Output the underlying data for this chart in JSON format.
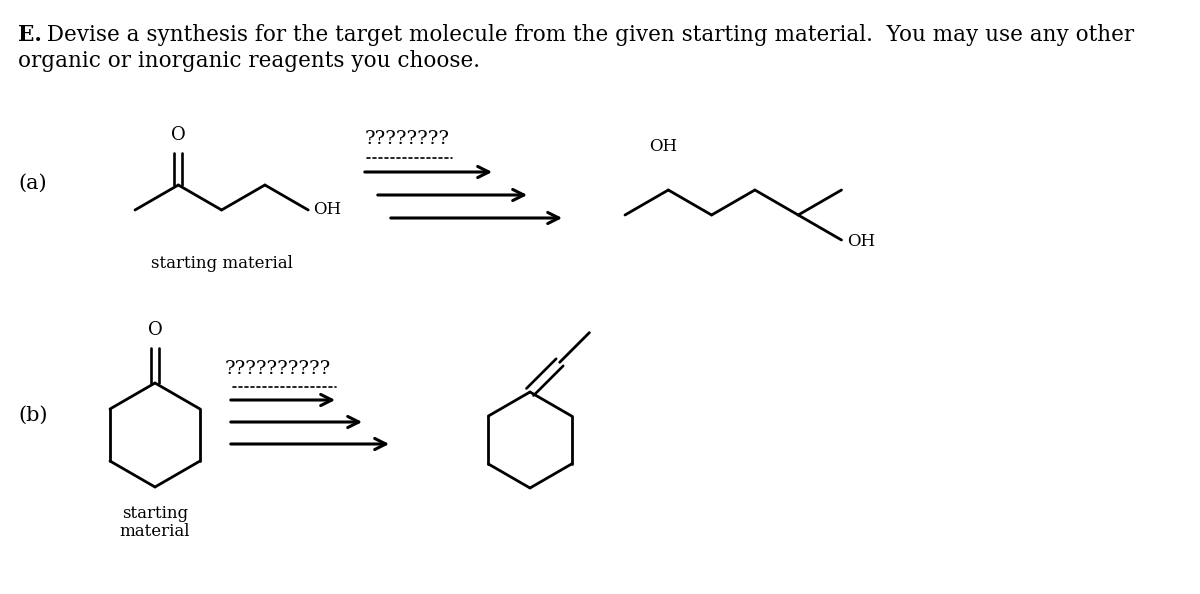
{
  "title_bold": "E.",
  "title_rest": " Devise a synthesis for the target molecule from the given starting material.  You may use any other",
  "title_line2": "organic or inorganic reagents you choose.",
  "label_a": "(a)",
  "label_b": "(b)",
  "starting_material_a": "starting material",
  "starting_material_b_line1": "starting",
  "starting_material_b_line2": "material",
  "reagents_a": "????????",
  "reagents_b": "??????????",
  "bg_color": "#ffffff",
  "line_color": "#000000",
  "font_size_title": 15.5,
  "font_size_label": 15,
  "font_size_sm": 12,
  "font_size_reagent": 14
}
